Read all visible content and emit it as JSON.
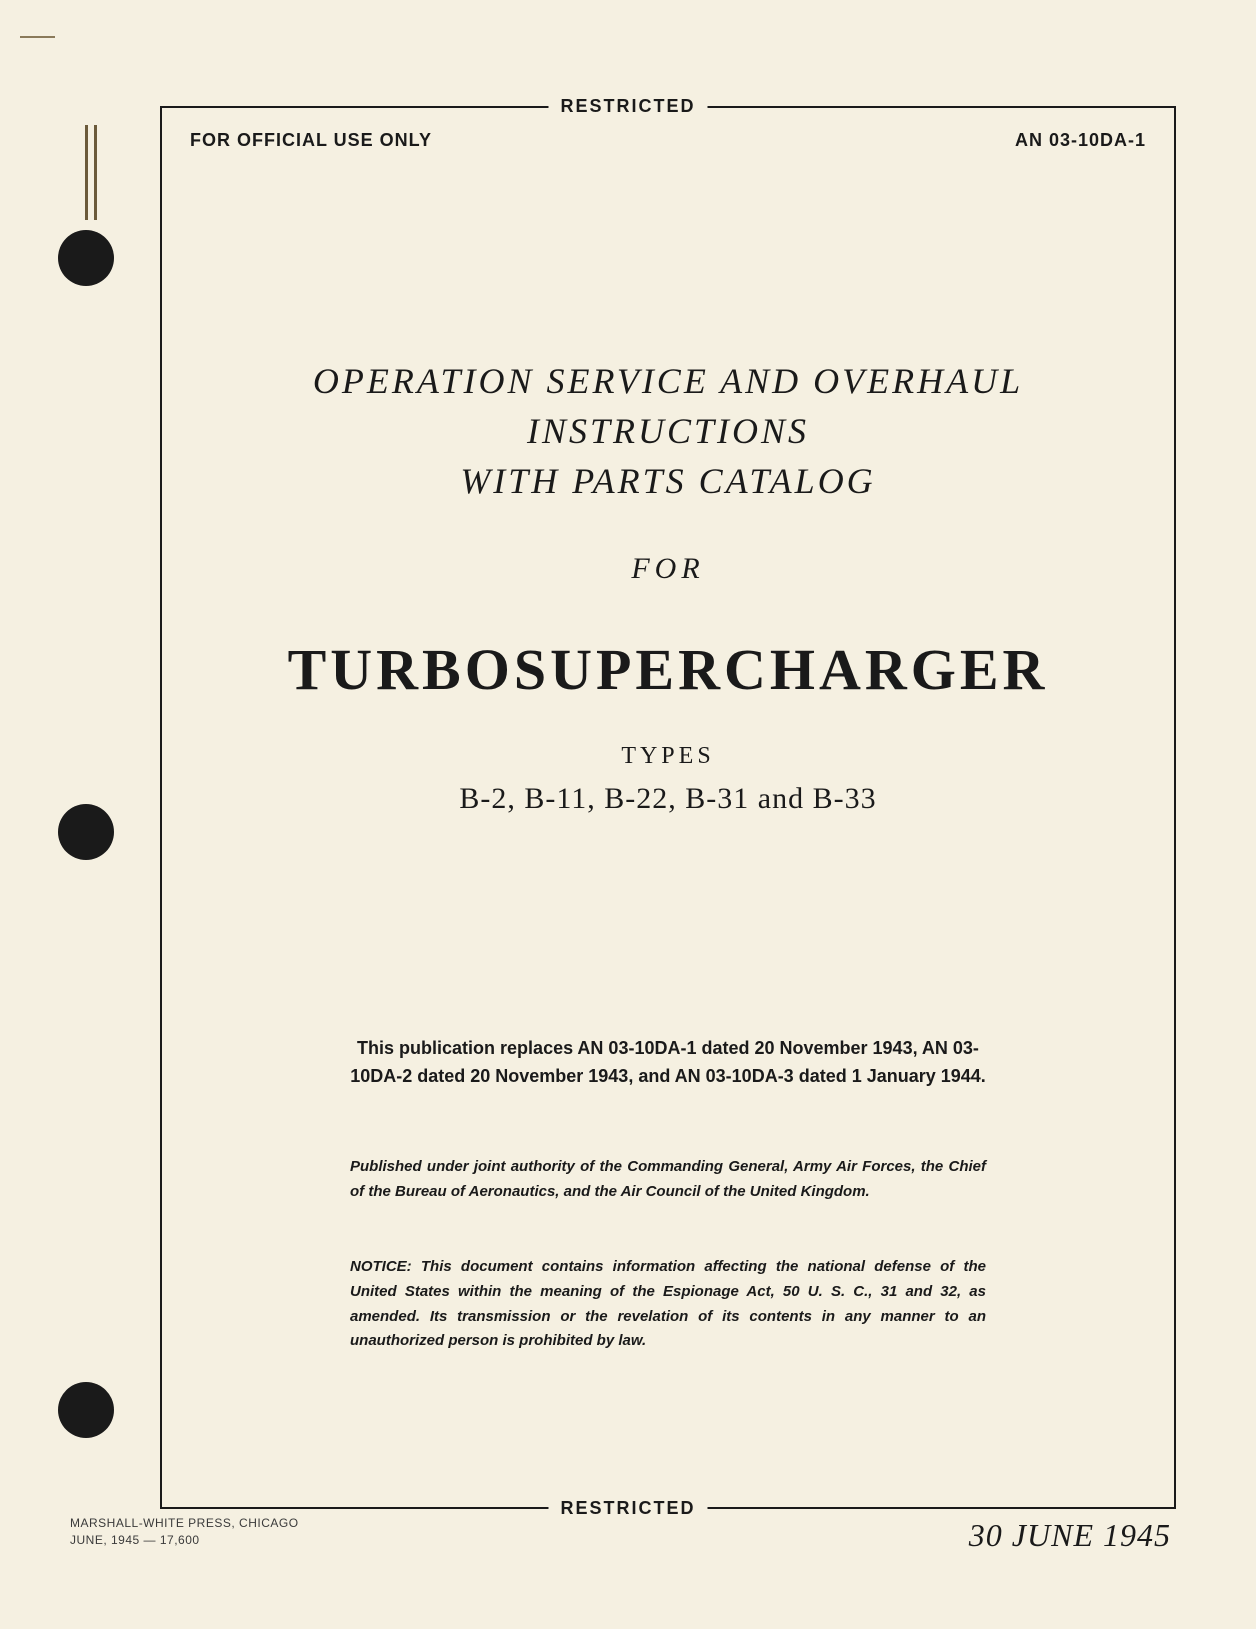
{
  "classification": "RESTRICTED",
  "header": {
    "official_use": "FOR OFFICIAL USE ONLY",
    "doc_number": "AN 03-10DA-1"
  },
  "title": {
    "line1": "OPERATION SERVICE AND OVERHAUL",
    "line2": "INSTRUCTIONS",
    "line3": "WITH PARTS CATALOG",
    "for": "FOR",
    "main": "TURBOSUPERCHARGER",
    "types_label": "TYPES",
    "types_list": "B-2, B-11, B-22, B-31 and B-33"
  },
  "replaces": "This publication replaces AN 03-10DA-1 dated 20 November 1943, AN 03-10DA-2 dated 20 November 1943, and AN 03-10DA-3 dated 1 January 1944.",
  "authority": "Published under joint authority of the Commanding General, Army Air Forces, the Chief of the Bureau of Aeronautics, and the Air Council of the United Kingdom.",
  "notice": "NOTICE: This document contains information affecting the national defense of the United States within the meaning of the Espionage Act, 50 U. S. C., 31 and 32, as amended. Its transmission or the revelation of its contents in any manner to an unauthorized person is prohibited by law.",
  "printer": {
    "line1": "MARSHALL-WHITE PRESS, CHICAGO",
    "line2": "JUNE, 1945 — 17,600"
  },
  "date": "30 JUNE 1945",
  "colors": {
    "page_bg": "#f5f0e1",
    "text": "#1a1a1a",
    "border": "#1a1a1a",
    "hole": "#1a1a1a"
  }
}
